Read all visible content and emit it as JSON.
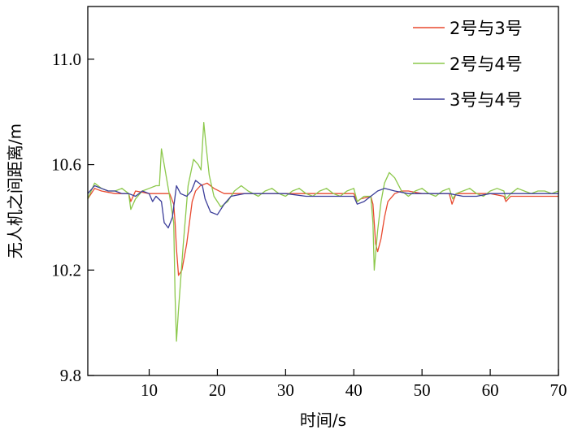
{
  "chart_data": {
    "type": "line",
    "title": "",
    "xlabel": "时间/s",
    "ylabel": "无人机之间距离/m",
    "xlim": [
      1,
      70
    ],
    "ylim": [
      9.8,
      11.2
    ],
    "xticks": [
      10,
      20,
      30,
      40,
      50,
      60,
      70
    ],
    "yticks": [
      9.8,
      10.2,
      10.6,
      11.0
    ],
    "ytick_labels": [
      "9.8",
      "10.2",
      "10.6",
      "11.0"
    ],
    "grid": false,
    "legend_position": "top-right",
    "series": [
      {
        "name": "2号与3号",
        "color": "#e8492f",
        "points": [
          [
            1,
            10.47
          ],
          [
            2,
            10.51
          ],
          [
            3,
            10.5
          ],
          [
            5,
            10.49
          ],
          [
            7,
            10.49
          ],
          [
            7.3,
            10.46
          ],
          [
            8,
            10.5
          ],
          [
            10,
            10.49
          ],
          [
            12,
            10.49
          ],
          [
            13,
            10.49
          ],
          [
            13.6,
            10.45
          ],
          [
            13.8,
            10.38
          ],
          [
            14,
            10.28
          ],
          [
            14.3,
            10.18
          ],
          [
            14.8,
            10.2
          ],
          [
            15.5,
            10.3
          ],
          [
            16,
            10.4
          ],
          [
            16.3,
            10.46
          ],
          [
            16.8,
            10.5
          ],
          [
            17.5,
            10.52
          ],
          [
            18.5,
            10.53
          ],
          [
            19.5,
            10.51
          ],
          [
            21,
            10.49
          ],
          [
            25,
            10.49
          ],
          [
            30,
            10.49
          ],
          [
            35,
            10.49
          ],
          [
            40,
            10.49
          ],
          [
            40.5,
            10.46
          ],
          [
            41,
            10.47
          ],
          [
            42.5,
            10.48
          ],
          [
            42.8,
            10.45
          ],
          [
            43,
            10.38
          ],
          [
            43.2,
            10.3
          ],
          [
            43.5,
            10.27
          ],
          [
            44,
            10.32
          ],
          [
            44.5,
            10.4
          ],
          [
            45,
            10.46
          ],
          [
            46,
            10.49
          ],
          [
            47,
            10.5
          ],
          [
            48,
            10.5
          ],
          [
            50,
            10.49
          ],
          [
            54,
            10.49
          ],
          [
            54.4,
            10.45
          ],
          [
            55,
            10.49
          ],
          [
            60,
            10.49
          ],
          [
            62,
            10.48
          ],
          [
            62.3,
            10.46
          ],
          [
            63,
            10.48
          ],
          [
            70,
            10.48
          ]
        ]
      },
      {
        "name": "2号与4号",
        "color": "#8cc84b",
        "points": [
          [
            1,
            10.47
          ],
          [
            2,
            10.53
          ],
          [
            3,
            10.51
          ],
          [
            4,
            10.5
          ],
          [
            5,
            10.5
          ],
          [
            6,
            10.51
          ],
          [
            7,
            10.49
          ],
          [
            7.3,
            10.43
          ],
          [
            8,
            10.47
          ],
          [
            9,
            10.5
          ],
          [
            10,
            10.51
          ],
          [
            11,
            10.52
          ],
          [
            11.5,
            10.52
          ],
          [
            11.8,
            10.66
          ],
          [
            12.2,
            10.6
          ],
          [
            13,
            10.48
          ],
          [
            13.6,
            10.38
          ],
          [
            13.8,
            10.1
          ],
          [
            14,
            9.93
          ],
          [
            14.3,
            10.05
          ],
          [
            15,
            10.3
          ],
          [
            15.7,
            10.52
          ],
          [
            16.5,
            10.62
          ],
          [
            17.2,
            10.6
          ],
          [
            17.6,
            10.58
          ],
          [
            18,
            10.76
          ],
          [
            18.3,
            10.68
          ],
          [
            18.8,
            10.56
          ],
          [
            19.5,
            10.48
          ],
          [
            20.5,
            10.44
          ],
          [
            21.5,
            10.46
          ],
          [
            22.5,
            10.5
          ],
          [
            23.5,
            10.52
          ],
          [
            24.5,
            10.5
          ],
          [
            26,
            10.48
          ],
          [
            27,
            10.5
          ],
          [
            28,
            10.51
          ],
          [
            29,
            10.49
          ],
          [
            30,
            10.48
          ],
          [
            31,
            10.5
          ],
          [
            32,
            10.51
          ],
          [
            33,
            10.49
          ],
          [
            34,
            10.48
          ],
          [
            35,
            10.5
          ],
          [
            36,
            10.51
          ],
          [
            37,
            10.49
          ],
          [
            38,
            10.48
          ],
          [
            39,
            10.5
          ],
          [
            40,
            10.51
          ],
          [
            40.5,
            10.46
          ],
          [
            41.5,
            10.48
          ],
          [
            42.5,
            10.48
          ],
          [
            42.8,
            10.38
          ],
          [
            43,
            10.2
          ],
          [
            43.5,
            10.35
          ],
          [
            44,
            10.46
          ],
          [
            44.5,
            10.53
          ],
          [
            45.2,
            10.57
          ],
          [
            46,
            10.55
          ],
          [
            47,
            10.5
          ],
          [
            48,
            10.48
          ],
          [
            49,
            10.5
          ],
          [
            50,
            10.51
          ],
          [
            51,
            10.49
          ],
          [
            52,
            10.48
          ],
          [
            53,
            10.5
          ],
          [
            54,
            10.51
          ],
          [
            54.5,
            10.47
          ],
          [
            55,
            10.49
          ],
          [
            56,
            10.5
          ],
          [
            57,
            10.51
          ],
          [
            58,
            10.49
          ],
          [
            59,
            10.48
          ],
          [
            60,
            10.5
          ],
          [
            61,
            10.51
          ],
          [
            62,
            10.5
          ],
          [
            62.3,
            10.47
          ],
          [
            63,
            10.49
          ],
          [
            64,
            10.51
          ],
          [
            65,
            10.5
          ],
          [
            66,
            10.49
          ],
          [
            67,
            10.5
          ],
          [
            68,
            10.5
          ],
          [
            69,
            10.49
          ],
          [
            70,
            10.5
          ]
        ]
      },
      {
        "name": "3号与4号",
        "color": "#3b3d99",
        "points": [
          [
            1,
            10.49
          ],
          [
            2,
            10.52
          ],
          [
            3,
            10.51
          ],
          [
            4,
            10.5
          ],
          [
            5,
            10.5
          ],
          [
            6,
            10.49
          ],
          [
            7,
            10.49
          ],
          [
            8,
            10.48
          ],
          [
            9,
            10.5
          ],
          [
            10,
            10.49
          ],
          [
            10.5,
            10.46
          ],
          [
            11,
            10.48
          ],
          [
            11.8,
            10.46
          ],
          [
            12.2,
            10.38
          ],
          [
            12.8,
            10.36
          ],
          [
            13.4,
            10.4
          ],
          [
            13.8,
            10.48
          ],
          [
            14,
            10.52
          ],
          [
            14.6,
            10.49
          ],
          [
            15.5,
            10.48
          ],
          [
            16.2,
            10.5
          ],
          [
            16.8,
            10.54
          ],
          [
            17.3,
            10.53
          ],
          [
            17.8,
            10.52
          ],
          [
            18.2,
            10.47
          ],
          [
            19,
            10.42
          ],
          [
            20,
            10.41
          ],
          [
            21,
            10.45
          ],
          [
            22,
            10.48
          ],
          [
            24,
            10.49
          ],
          [
            26,
            10.49
          ],
          [
            28,
            10.49
          ],
          [
            30,
            10.49
          ],
          [
            33,
            10.48
          ],
          [
            36,
            10.48
          ],
          [
            38,
            10.48
          ],
          [
            40,
            10.48
          ],
          [
            40.5,
            10.45
          ],
          [
            41.5,
            10.46
          ],
          [
            42.5,
            10.48
          ],
          [
            43.5,
            10.5
          ],
          [
            44.5,
            10.51
          ],
          [
            46,
            10.5
          ],
          [
            48,
            10.49
          ],
          [
            50,
            10.49
          ],
          [
            52,
            10.49
          ],
          [
            54,
            10.49
          ],
          [
            56,
            10.48
          ],
          [
            58,
            10.48
          ],
          [
            60,
            10.49
          ],
          [
            62,
            10.49
          ],
          [
            64,
            10.49
          ],
          [
            66,
            10.49
          ],
          [
            68,
            10.49
          ],
          [
            70,
            10.49
          ]
        ]
      }
    ]
  }
}
